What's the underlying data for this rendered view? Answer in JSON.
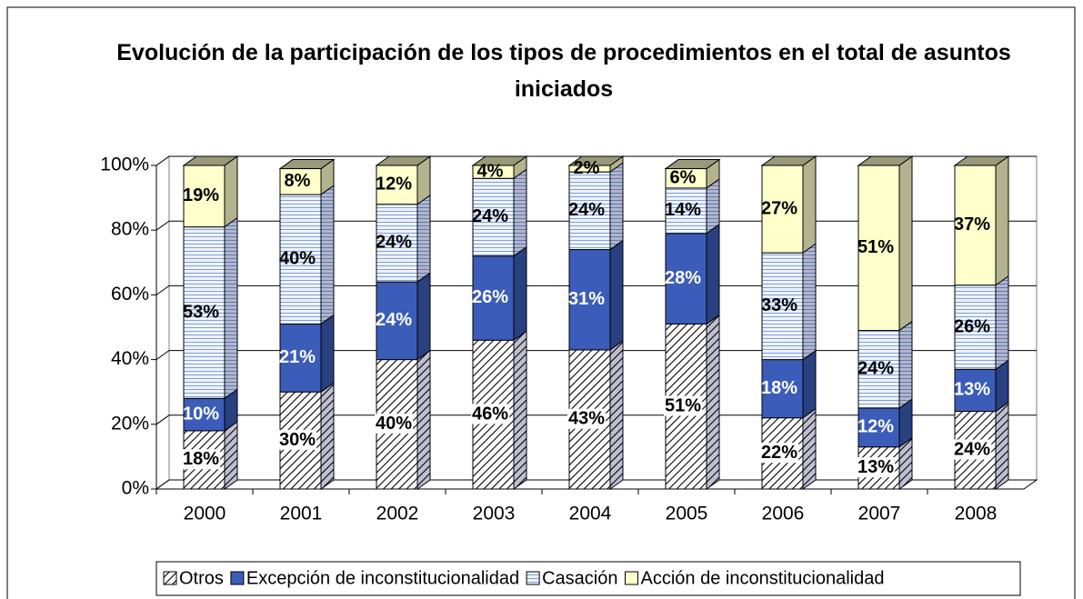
{
  "chart_data": {
    "type": "bar",
    "stacked": true,
    "depth3d": true,
    "title": "Evolución de la participación de los tipos de procedimientos en el total de asuntos iniciados",
    "categories": [
      "2000",
      "2001",
      "2002",
      "2003",
      "2004",
      "2005",
      "2006",
      "2007",
      "2008"
    ],
    "series": [
      {
        "name": "Otros",
        "color": "#ffffff",
        "pattern": "diagonal",
        "values": [
          18,
          30,
          40,
          46,
          43,
          51,
          22,
          13,
          24
        ],
        "value_labels": [
          "18%",
          "30%",
          "40%",
          "46%",
          "43%",
          "51%",
          "22%",
          "13%",
          "24%"
        ]
      },
      {
        "name": "Excepción de inconstitucionalidad",
        "color": "#3b5cb8",
        "pattern": null,
        "values": [
          10,
          21,
          24,
          26,
          31,
          28,
          18,
          12,
          13
        ],
        "value_labels": [
          "10%",
          "21%",
          "24%",
          "26%",
          "31%",
          "28%",
          "18%",
          "12%",
          "13%"
        ]
      },
      {
        "name": "Casación",
        "color": "#eef3fb",
        "pattern": "horizontal",
        "values": [
          53,
          40,
          24,
          24,
          24,
          14,
          33,
          24,
          26
        ],
        "value_labels": [
          "53%",
          "40%",
          "24%",
          "24%",
          "24%",
          "14%",
          "33%",
          "24%",
          "26%"
        ]
      },
      {
        "name": "Acción de inconstitucionalidad",
        "color": "#ffffcc",
        "pattern": null,
        "values": [
          19,
          8,
          12,
          4,
          2,
          6,
          27,
          51,
          37
        ],
        "value_labels": [
          "19%",
          "8%",
          "12%",
          "4%",
          "2%",
          "6%",
          "27%",
          "51%",
          "37%"
        ]
      }
    ],
    "ylim": [
      0,
      100
    ],
    "yticks": [
      {
        "value": 0,
        "label": "0%"
      },
      {
        "value": 20,
        "label": "20%"
      },
      {
        "value": 40,
        "label": "40%"
      },
      {
        "value": 60,
        "label": "60%"
      },
      {
        "value": 80,
        "label": "80%"
      },
      {
        "value": 100,
        "label": "100%"
      }
    ],
    "grid": true,
    "legend": "bottom"
  }
}
